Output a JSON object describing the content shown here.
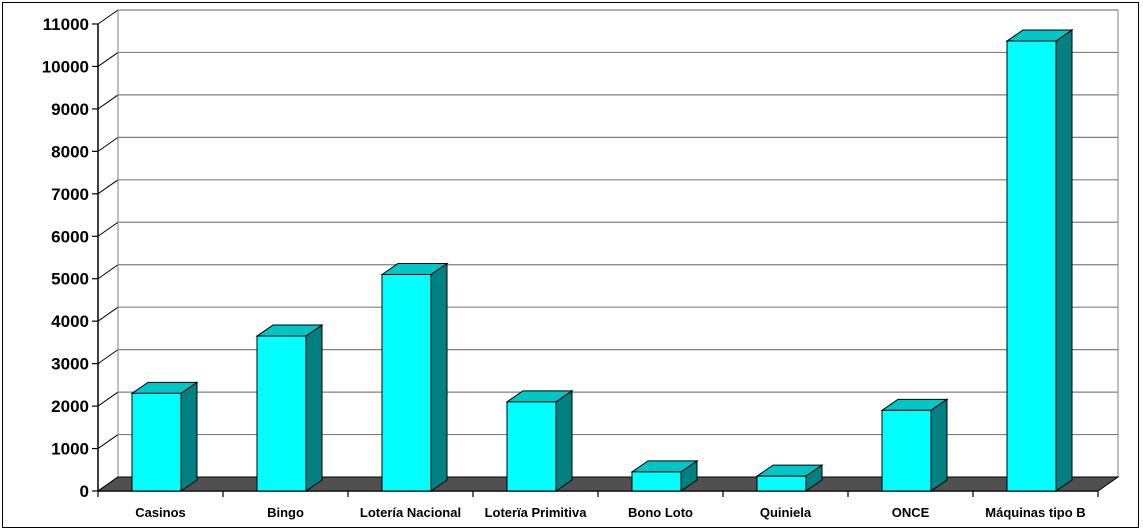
{
  "chart_data": {
    "type": "bar",
    "categories": [
      "Casinos",
      "Bingo",
      "Lotería Nacional",
      "Loterïa Primitiva",
      "Bono Loto",
      "Quiniela",
      "ONCE",
      "Máquinas tipo B"
    ],
    "values": [
      2300,
      3650,
      5100,
      2100,
      450,
      350,
      1900,
      10600
    ],
    "title": "",
    "xlabel": "",
    "ylabel": "",
    "ylim": [
      0,
      11000
    ],
    "yticks": [
      0,
      1000,
      2000,
      3000,
      4000,
      5000,
      6000,
      7000,
      8000,
      9000,
      10000,
      11000
    ],
    "grid": true,
    "legend": "none",
    "style": "3d-column",
    "colors": {
      "bar_front": "#00ffff",
      "bar_top": "#00c6c6",
      "bar_side": "#008080",
      "floor": "#505050",
      "gridline": "#808080"
    }
  }
}
